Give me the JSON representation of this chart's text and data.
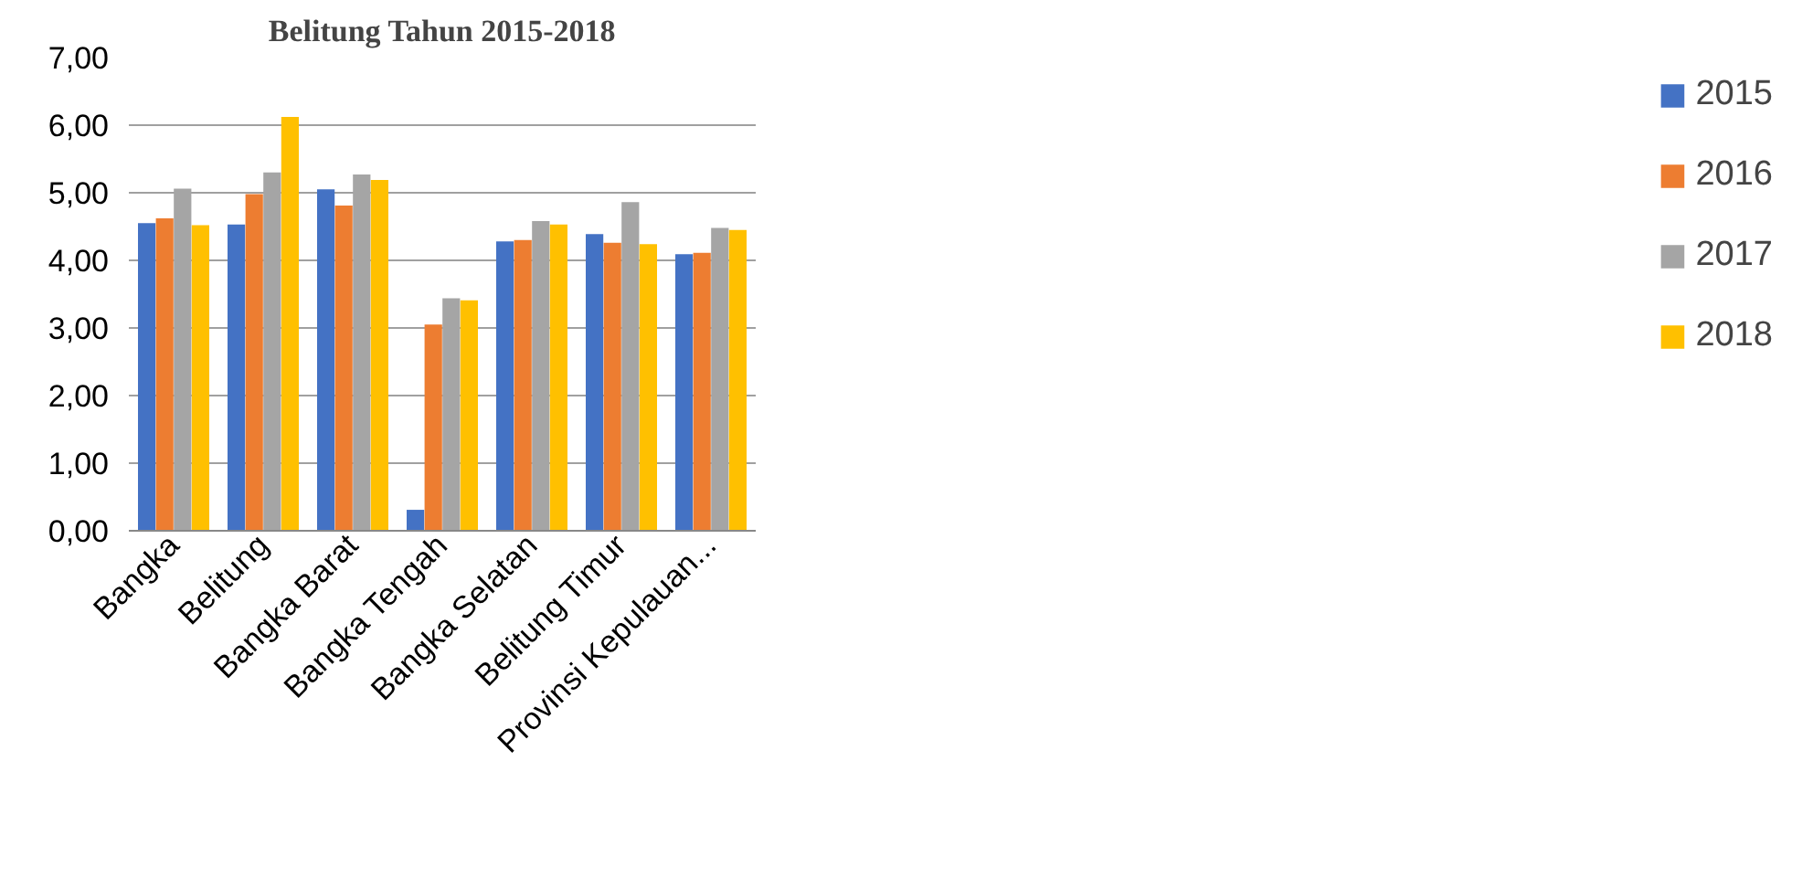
{
  "chart_data": {
    "type": "bar",
    "title": "Belitung Tahun 2015-2018",
    "categories": [
      "Bangka",
      "Belitung",
      "Bangka Barat",
      "Bangka Tengah",
      "Bangka Selatan",
      "Belitung Timur",
      "Provinsi Kepulauan..."
    ],
    "series": [
      {
        "name": "2015",
        "color": "#4472c4",
        "values": [
          4.55,
          4.53,
          5.05,
          0.31,
          4.28,
          4.39,
          4.09
        ]
      },
      {
        "name": "2016",
        "color": "#ed7d31",
        "values": [
          4.62,
          4.98,
          4.81,
          3.05,
          4.3,
          4.26,
          4.11
        ]
      },
      {
        "name": "2017",
        "color": "#a5a5a5",
        "values": [
          5.06,
          5.3,
          5.27,
          3.44,
          4.58,
          4.86,
          4.48
        ]
      },
      {
        "name": "2018",
        "color": "#ffc000",
        "values": [
          4.52,
          6.12,
          5.19,
          3.41,
          4.53,
          4.24,
          4.45
        ]
      }
    ],
    "ylim": [
      0,
      7
    ],
    "yticks": [
      {
        "value": 0,
        "label": "0,00"
      },
      {
        "value": 1,
        "label": "1,00"
      },
      {
        "value": 2,
        "label": "2,00"
      },
      {
        "value": 3,
        "label": "3,00"
      },
      {
        "value": 4,
        "label": "4,00"
      },
      {
        "value": 5,
        "label": "5,00"
      },
      {
        "value": 6,
        "label": "6,00"
      },
      {
        "value": 7,
        "label": "7,00"
      }
    ],
    "grid": "y",
    "legend": "right"
  }
}
